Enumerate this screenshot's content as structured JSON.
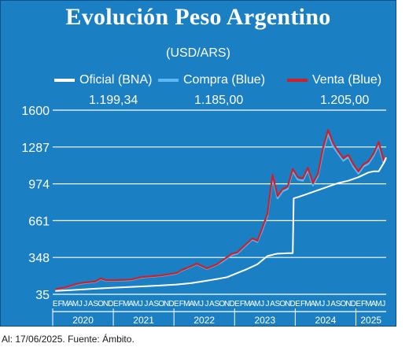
{
  "header": {
    "title": "Evolución Peso Argentino",
    "subtitle": "(USD/ARS)"
  },
  "legend": {
    "oficial": "Oficial (BNA)",
    "compra": "Compra (Blue)",
    "venta": "Venta (Blue)"
  },
  "last_values": {
    "oficial": "1.199,34",
    "compra": "1.185,00",
    "venta": "1.205,00"
  },
  "footer": "Al: 17/06/2025. Fuente: Ámbito.",
  "colors": {
    "background": "#1b7fc3",
    "oficial": "#ffffff",
    "compra": "#5bb8f5",
    "venta": "#d21f26",
    "grid": "#ffffff"
  },
  "chart_data": {
    "type": "line",
    "ylim": [
      35,
      1600
    ],
    "yticks": [
      35,
      348,
      661,
      974,
      1287,
      1600
    ],
    "grid": true,
    "x_month_labels": [
      "E",
      "F",
      "M",
      "A",
      "M",
      "J",
      "J",
      "A",
      "S",
      "O",
      "N",
      "D",
      "E",
      "F",
      "M",
      "A",
      "M",
      "J",
      "J",
      "A",
      "S",
      "O",
      "N",
      "D",
      "E",
      "F",
      "M",
      "A",
      "M",
      "J",
      "J",
      "A",
      "S",
      "O",
      "N",
      "D",
      "E",
      "F",
      "M",
      "A",
      "M",
      "J",
      "J",
      "A",
      "S",
      "O",
      "N",
      "D",
      "E",
      "F",
      "M",
      "A",
      "M",
      "J",
      "J",
      "A",
      "S",
      "O",
      "N",
      "D",
      "E",
      "F",
      "M",
      "A",
      "M",
      "J"
    ],
    "x_years": [
      "2020",
      "2021",
      "2022",
      "2023",
      "2024",
      "2025"
    ],
    "series": [
      {
        "name": "Oficial (BNA)",
        "x": [
          0,
          3,
          6,
          9,
          12,
          15,
          18,
          21,
          24,
          27,
          30,
          32,
          34,
          36,
          38,
          40,
          42,
          43,
          43.3,
          44,
          45,
          46,
          47,
          47.2,
          48,
          50,
          52,
          54,
          56,
          58,
          60,
          61,
          62,
          63,
          64,
          65,
          65.5
        ],
        "values": [
          63,
          70,
          78,
          85,
          92,
          98,
          104,
          110,
          118,
          130,
          150,
          165,
          180,
          215,
          250,
          290,
          360,
          370,
          375,
          380,
          382,
          384,
          385,
          850,
          860,
          890,
          920,
          950,
          980,
          1000,
          1030,
          1050,
          1070,
          1080,
          1080,
          1150,
          1199.34
        ]
      },
      {
        "name": "Compra (Blue)",
        "x": [
          0,
          2,
          4,
          5,
          6,
          8,
          9,
          10,
          12,
          15,
          17,
          18,
          21,
          24,
          25,
          27,
          28,
          30,
          32,
          33,
          35,
          36,
          38,
          39,
          40,
          41,
          42,
          43,
          44,
          45,
          46,
          47,
          48,
          49,
          50,
          51,
          52,
          53,
          54,
          55,
          56,
          57,
          58,
          59,
          60,
          61,
          62,
          63,
          64,
          65,
          65.5
        ],
        "values": [
          75,
          90,
          115,
          125,
          130,
          140,
          165,
          150,
          150,
          155,
          175,
          180,
          190,
          210,
          235,
          270,
          290,
          250,
          285,
          310,
          370,
          380,
          460,
          500,
          480,
          580,
          700,
          1020,
          850,
          910,
          930,
          1080,
          1010,
          1000,
          1090,
          960,
          1040,
          1250,
          1400,
          1290,
          1230,
          1170,
          1200,
          1120,
          1060,
          1120,
          1145,
          1210,
          1300,
          1150,
          1185.0
        ]
      },
      {
        "name": "Venta (Blue)",
        "x": [
          0,
          2,
          4,
          5,
          6,
          8,
          9,
          10,
          12,
          15,
          17,
          18,
          21,
          24,
          25,
          27,
          28,
          30,
          32,
          33,
          35,
          36,
          38,
          39,
          40,
          41,
          42,
          43,
          44,
          45,
          46,
          47,
          48,
          49,
          50,
          51,
          52,
          53,
          54,
          55,
          56,
          57,
          58,
          59,
          60,
          61,
          62,
          63,
          64,
          65,
          65.5
        ],
        "values": [
          78,
          93,
          120,
          130,
          135,
          145,
          170,
          155,
          155,
          160,
          180,
          185,
          195,
          215,
          240,
          275,
          295,
          255,
          290,
          320,
          380,
          390,
          470,
          510,
          490,
          600,
          720,
          1050,
          870,
          930,
          950,
          1100,
          1030,
          1020,
          1110,
          980,
          1060,
          1280,
          1430,
          1320,
          1250,
          1190,
          1220,
          1140,
          1080,
          1140,
          1165,
          1230,
          1330,
          1170,
          1205.0
        ]
      }
    ]
  }
}
